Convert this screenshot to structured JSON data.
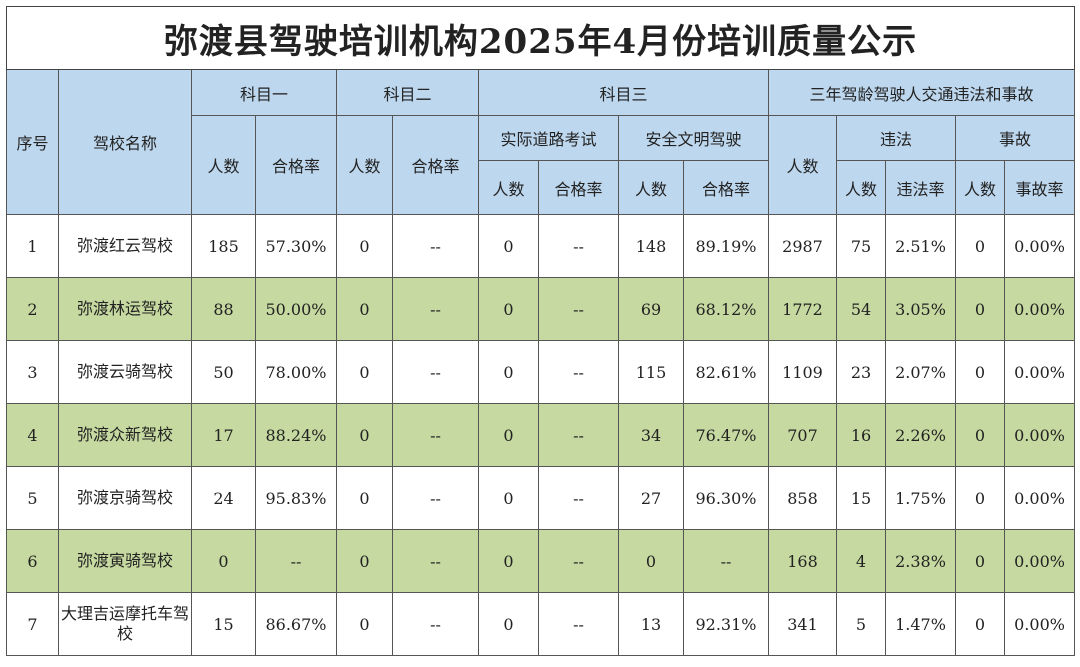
{
  "title": "弥渡县驾驶培训机构2025年4月份培训质量公示",
  "headers": {
    "index": "序号",
    "school": "驾校名称",
    "subject1": "科目一",
    "subject2": "科目二",
    "subject3": "科目三",
    "three_year": "三年驾龄驾驶人交通违法和事故",
    "road_exam": "实际道路考试",
    "safe_driving": "安全文明驾驶",
    "violation": "违法",
    "accident": "事故",
    "count": "人数",
    "pass_rate": "合格率",
    "violation_rate": "违法率",
    "accident_rate": "事故率"
  },
  "rows": [
    {
      "idx": "1",
      "name": "弥渡红云驾校",
      "s1n": "185",
      "s1r": "57.30%",
      "s2n": "0",
      "s2r": "--",
      "s3an": "0",
      "s3ar": "--",
      "s3bn": "148",
      "s3br": "89.19%",
      "tn": "2987",
      "vn": "75",
      "vr": "2.51%",
      "an": "0",
      "ar": "0.00%"
    },
    {
      "idx": "2",
      "name": "弥渡林运驾校",
      "s1n": "88",
      "s1r": "50.00%",
      "s2n": "0",
      "s2r": "--",
      "s3an": "0",
      "s3ar": "--",
      "s3bn": "69",
      "s3br": "68.12%",
      "tn": "1772",
      "vn": "54",
      "vr": "3.05%",
      "an": "0",
      "ar": "0.00%"
    },
    {
      "idx": "3",
      "name": "弥渡云骑驾校",
      "s1n": "50",
      "s1r": "78.00%",
      "s2n": "0",
      "s2r": "--",
      "s3an": "0",
      "s3ar": "--",
      "s3bn": "115",
      "s3br": "82.61%",
      "tn": "1109",
      "vn": "23",
      "vr": "2.07%",
      "an": "0",
      "ar": "0.00%"
    },
    {
      "idx": "4",
      "name": "弥渡众新驾校",
      "s1n": "17",
      "s1r": "88.24%",
      "s2n": "0",
      "s2r": "--",
      "s3an": "0",
      "s3ar": "--",
      "s3bn": "34",
      "s3br": "76.47%",
      "tn": "707",
      "vn": "16",
      "vr": "2.26%",
      "an": "0",
      "ar": "0.00%"
    },
    {
      "idx": "5",
      "name": "弥渡京骑驾校",
      "s1n": "24",
      "s1r": "95.83%",
      "s2n": "0",
      "s2r": "--",
      "s3an": "0",
      "s3ar": "--",
      "s3bn": "27",
      "s3br": "96.30%",
      "tn": "858",
      "vn": "15",
      "vr": "1.75%",
      "an": "0",
      "ar": "0.00%"
    },
    {
      "idx": "6",
      "name": "弥渡寅骑驾校",
      "s1n": "0",
      "s1r": "--",
      "s2n": "0",
      "s2r": "--",
      "s3an": "0",
      "s3ar": "--",
      "s3bn": "0",
      "s3br": "--",
      "tn": "168",
      "vn": "4",
      "vr": "2.38%",
      "an": "0",
      "ar": "0.00%"
    },
    {
      "idx": "7",
      "name": "大理吉运摩托车驾校",
      "s1n": "15",
      "s1r": "86.67%",
      "s2n": "0",
      "s2r": "--",
      "s3an": "0",
      "s3ar": "--",
      "s3bn": "13",
      "s3br": "92.31%",
      "tn": "341",
      "vn": "5",
      "vr": "1.47%",
      "an": "0",
      "ar": "0.00%"
    }
  ],
  "colors": {
    "header_bg": "#bdd7ee",
    "row_stripe": "#c5d9a0",
    "row_plain": "#ffffff"
  }
}
